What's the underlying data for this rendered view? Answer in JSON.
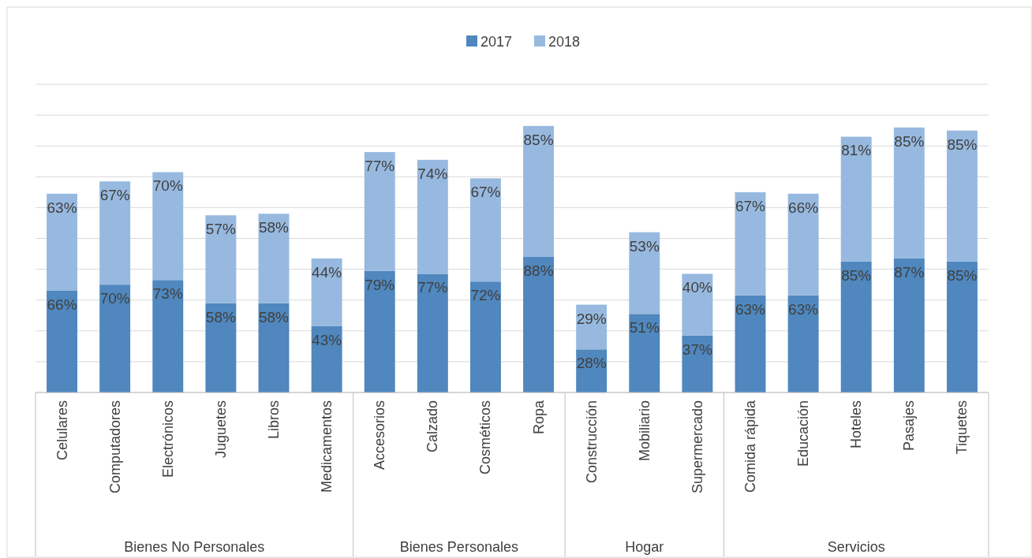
{
  "chart_data": {
    "type": "bar",
    "stacked": true,
    "categories": [
      "Celulares",
      "Computadores",
      "Electrónicos",
      "Juguetes",
      "Libros",
      "Medicamentos",
      "Accesorios",
      "Calzado",
      "Cosméticos",
      "Ropa",
      "Construcción",
      "Mobiliario",
      "Supermercado",
      "Comida rápida",
      "Educación",
      "Hoteles",
      "Pasajes",
      "Tiquetes"
    ],
    "series": [
      {
        "name": "2017",
        "color": "#4f87be",
        "values": [
          66,
          70,
          73,
          58,
          58,
          43,
          79,
          77,
          72,
          88,
          28,
          51,
          37,
          63,
          63,
          85,
          87,
          85
        ],
        "value_labels": [
          "66%",
          "70%",
          "73%",
          "58%",
          "58%",
          "43%",
          "79%",
          "77%",
          "72%",
          "88%",
          "28%",
          "51%",
          "37%",
          "63%",
          "63%",
          "85%",
          "87%",
          "85%"
        ]
      },
      {
        "name": "2018",
        "color": "#97b9df",
        "values": [
          63,
          67,
          70,
          57,
          58,
          44,
          77,
          74,
          67,
          85,
          29,
          53,
          40,
          67,
          66,
          81,
          85,
          85
        ],
        "value_labels": [
          "63%",
          "67%",
          "70%",
          "57%",
          "58%",
          "44%",
          "77%",
          "74%",
          "67%",
          "85%",
          "29%",
          "53%",
          "40%",
          "67%",
          "66%",
          "81%",
          "85%",
          "85%"
        ]
      }
    ],
    "ylim": [
      0,
      200
    ],
    "yticks": [
      {
        "value": 0,
        "label": null
      },
      {
        "value": 20,
        "label": null
      },
      {
        "value": 40,
        "label": null
      },
      {
        "value": 60,
        "label": null
      },
      {
        "value": 80,
        "label": null
      },
      {
        "value": 100,
        "label": null
      },
      {
        "value": 120,
        "label": null
      },
      {
        "value": 140,
        "label": null
      },
      {
        "value": 160,
        "label": null
      },
      {
        "value": 180,
        "label": null
      },
      {
        "value": 200,
        "label": null
      }
    ],
    "tick_labels": "x",
    "grid": "y",
    "legend": "top",
    "annotations": [
      "Bienes No Personales",
      "Bienes Personales",
      "Hogar",
      "Servicios"
    ]
  }
}
